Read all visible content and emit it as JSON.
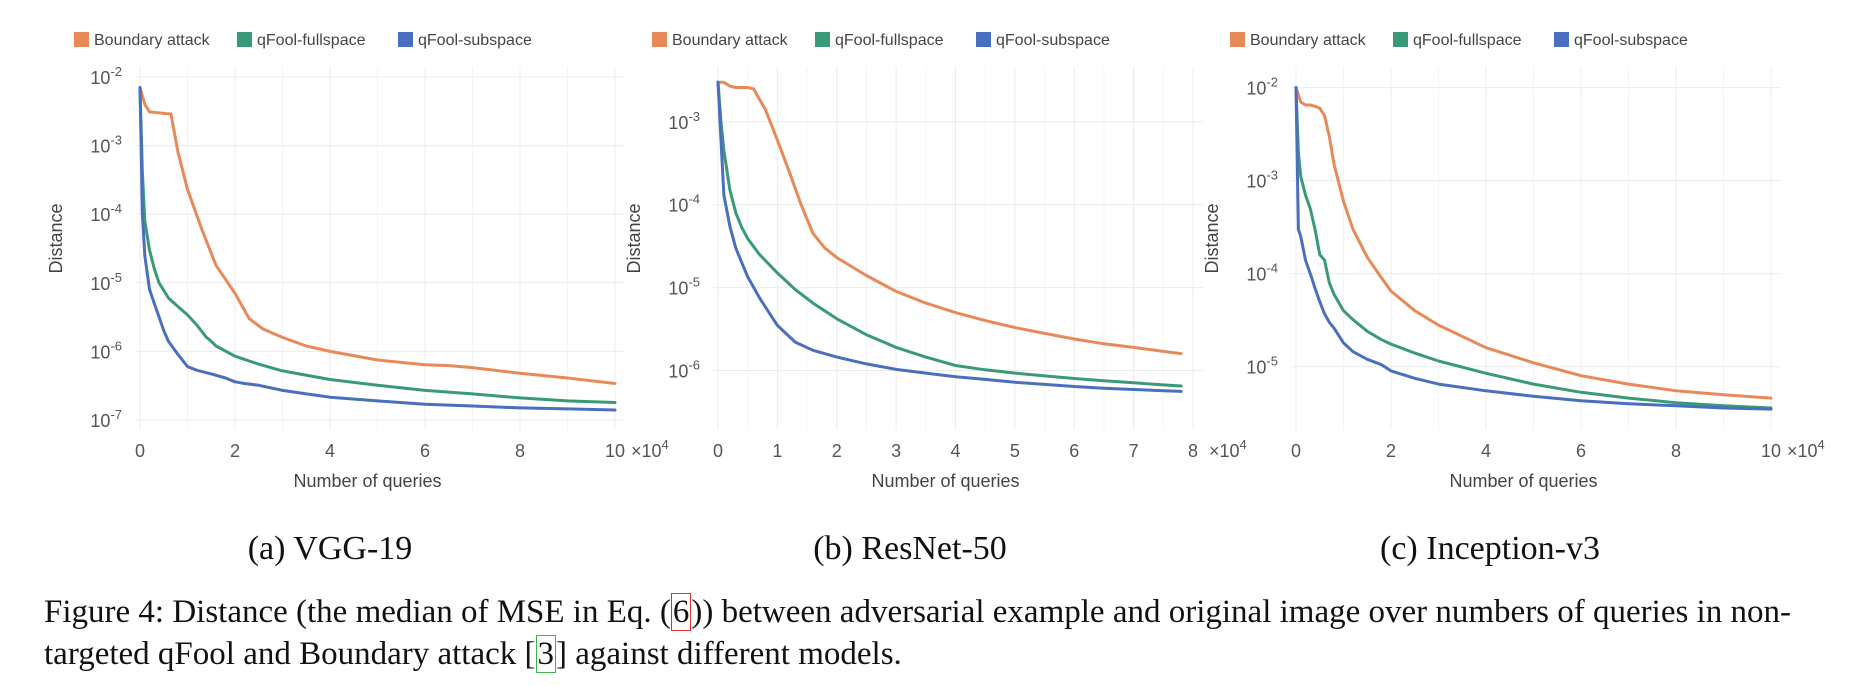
{
  "legend": [
    {
      "name": "Boundary attack",
      "color": "#e8895a"
    },
    {
      "name": "qFool-fullspace",
      "color": "#3a9a78"
    },
    {
      "name": "qFool-subspace",
      "color": "#4a6fbf"
    }
  ],
  "chart_data": [
    {
      "type": "line",
      "ylabel": "Distance",
      "xlabel": "Number of queries",
      "xlim": [
        0,
        100000
      ],
      "x_multiplier": "×10^4",
      "xticks": [
        0,
        20000,
        40000,
        60000,
        80000,
        100000
      ],
      "xtick_labels": [
        "0",
        "2",
        "4",
        "6",
        "8",
        "10"
      ],
      "yscale": "log",
      "ylim": [
        1e-07,
        0.01
      ],
      "yticks": [
        {
          "base": "10",
          "exp": "-2",
          "v": 0.01
        },
        {
          "base": "10",
          "exp": "-3",
          "v": 0.001
        },
        {
          "base": "10",
          "exp": "-4",
          "v": 0.0001
        },
        {
          "base": "10",
          "exp": "-5",
          "v": 1e-05
        },
        {
          "base": "10",
          "exp": "-6",
          "v": 1e-06
        },
        {
          "base": "10",
          "exp": "-7",
          "v": 1e-07
        }
      ],
      "series": [
        {
          "name": "Boundary attack",
          "x": [
            0,
            1000,
            2000,
            4000,
            6000,
            6500,
            8000,
            10000,
            13000,
            16000,
            20000,
            23000,
            26000,
            30000,
            35000,
            40000,
            50000,
            60000,
            65000,
            70000,
            80000,
            90000,
            100000
          ],
          "y": [
            0.007,
            0.004,
            0.0031,
            0.003,
            0.0029,
            0.0029,
            0.0008,
            0.00023,
            6e-05,
            1.8e-05,
            7e-06,
            3e-06,
            2.1e-06,
            1.6e-06,
            1.2e-06,
            1e-06,
            7.5e-07,
            6.4e-07,
            6.2e-07,
            5.8e-07,
            4.8e-07,
            4.1e-07,
            3.4e-07
          ]
        },
        {
          "name": "qFool-fullspace",
          "x": [
            0,
            500,
            1000,
            2000,
            3000,
            4000,
            6000,
            8000,
            10000,
            12000,
            14000,
            15000,
            16000,
            20000,
            25000,
            30000,
            40000,
            50000,
            60000,
            70000,
            80000,
            90000,
            100000
          ],
          "y": [
            0.007,
            0.0004,
            8e-05,
            3e-05,
            1.6e-05,
            1e-05,
            6e-06,
            4.5e-06,
            3.4e-06,
            2.4e-06,
            1.6e-06,
            1.4e-06,
            1.2e-06,
            8.5e-07,
            6.5e-07,
            5.2e-07,
            3.9e-07,
            3.2e-07,
            2.7e-07,
            2.4e-07,
            2.1e-07,
            1.9e-07,
            1.8e-07
          ]
        },
        {
          "name": "qFool-subspace",
          "x": [
            0,
            500,
            1000,
            2000,
            3000,
            4000,
            5000,
            6000,
            8000,
            10000,
            12000,
            15000,
            18000,
            20000,
            22000,
            25000,
            30000,
            35000,
            40000,
            50000,
            60000,
            70000,
            80000,
            90000,
            100000
          ],
          "y": [
            0.007,
            0.0001,
            2.5e-05,
            8e-06,
            5e-06,
            3.2e-06,
            2e-06,
            1.4e-06,
            9e-07,
            6e-07,
            5.3e-07,
            4.7e-07,
            4.1e-07,
            3.6e-07,
            3.4e-07,
            3.2e-07,
            2.7e-07,
            2.4e-07,
            2.15e-07,
            1.9e-07,
            1.7e-07,
            1.6e-07,
            1.5e-07,
            1.45e-07,
            1.4e-07
          ]
        }
      ]
    },
    {
      "type": "line",
      "ylabel": "Distance",
      "xlabel": "Number of queries",
      "xlim": [
        0,
        80000
      ],
      "x_multiplier": "×10^4",
      "xticks": [
        0,
        10000,
        20000,
        30000,
        40000,
        50000,
        60000,
        70000,
        80000
      ],
      "xtick_labels": [
        "0",
        "1",
        "2",
        "3",
        "4",
        "5",
        "6",
        "7",
        "8"
      ],
      "yscale": "log",
      "ylim": [
        5.5e-07,
        0.0032
      ],
      "yticks": [
        {
          "base": "10",
          "exp": "-3",
          "v": 0.001
        },
        {
          "base": "10",
          "exp": "-4",
          "v": 0.0001
        },
        {
          "base": "10",
          "exp": "-5",
          "v": 1e-05
        },
        {
          "base": "10",
          "exp": "-6",
          "v": 1e-06
        }
      ],
      "series": [
        {
          "name": "Boundary attack",
          "x": [
            0,
            1000,
            2000,
            3000,
            4000,
            5000,
            6000,
            8000,
            10000,
            12000,
            14000,
            16000,
            18000,
            20000,
            25000,
            30000,
            35000,
            40000,
            45000,
            50000,
            55000,
            60000,
            65000,
            70000,
            75000,
            78000
          ],
          "y": [
            0.003,
            0.003,
            0.0027,
            0.0026,
            0.0026,
            0.0026,
            0.0025,
            0.0014,
            0.0006,
            0.00025,
            0.0001,
            4.5e-05,
            3e-05,
            2.3e-05,
            1.4e-05,
            9e-06,
            6.5e-06,
            5e-06,
            4e-06,
            3.3e-06,
            2.8e-06,
            2.4e-06,
            2.1e-06,
            1.9e-06,
            1.7e-06,
            1.6e-06
          ]
        },
        {
          "name": "qFool-fullspace",
          "x": [
            0,
            500,
            1000,
            2000,
            3000,
            4000,
            5000,
            7000,
            10000,
            13000,
            16000,
            20000,
            25000,
            30000,
            35000,
            40000,
            45000,
            50000,
            55000,
            60000,
            65000,
            70000,
            75000,
            78000
          ],
          "y": [
            0.003,
            0.001,
            0.00045,
            0.00015,
            8e-05,
            5.3e-05,
            3.9e-05,
            2.5e-05,
            1.5e-05,
            9.5e-06,
            6.5e-06,
            4.2e-06,
            2.7e-06,
            1.9e-06,
            1.45e-06,
            1.15e-06,
            1.02e-06,
            9.3e-07,
            8.6e-07,
            8e-07,
            7.5e-07,
            7.1e-07,
            6.7e-07,
            6.5e-07
          ]
        },
        {
          "name": "qFool-subspace",
          "x": [
            0,
            500,
            1000,
            2000,
            3000,
            4000,
            5000,
            7000,
            10000,
            13000,
            16000,
            20000,
            25000,
            30000,
            35000,
            40000,
            45000,
            50000,
            55000,
            60000,
            65000,
            70000,
            75000,
            78000
          ],
          "y": [
            0.003,
            0.0006,
            0.00013,
            5.5e-05,
            3e-05,
            2e-05,
            1.35e-05,
            7.5e-06,
            3.5e-06,
            2.2e-06,
            1.75e-06,
            1.45e-06,
            1.2e-06,
            1.03e-06,
            9.3e-07,
            8.4e-07,
            7.8e-07,
            7.2e-07,
            6.8e-07,
            6.4e-07,
            6.1e-07,
            5.9e-07,
            5.7e-07,
            5.6e-07
          ]
        }
      ]
    },
    {
      "type": "line",
      "ylabel": "Distance",
      "xlabel": "Number of queries",
      "xlim": [
        0,
        100000
      ],
      "x_multiplier": "×10^4",
      "xticks": [
        0,
        20000,
        40000,
        60000,
        80000,
        100000
      ],
      "xtick_labels": [
        "0",
        "2",
        "4",
        "6",
        "8",
        "10"
      ],
      "yscale": "log",
      "ylim": [
        3.1e-06,
        0.0115
      ],
      "yticks": [
        {
          "base": "10",
          "exp": "-2",
          "v": 0.01
        },
        {
          "base": "10",
          "exp": "-3",
          "v": 0.001
        },
        {
          "base": "10",
          "exp": "-4",
          "v": 0.0001
        },
        {
          "base": "10",
          "exp": "-5",
          "v": 1e-05
        }
      ],
      "series": [
        {
          "name": "Boundary attack",
          "x": [
            0,
            1000,
            2000,
            3000,
            4000,
            5000,
            6000,
            7000,
            8000,
            10000,
            12000,
            15000,
            18000,
            20000,
            25000,
            30000,
            40000,
            50000,
            60000,
            70000,
            80000,
            90000,
            100000
          ],
          "y": [
            0.01,
            0.007,
            0.0065,
            0.0065,
            0.0063,
            0.006,
            0.005,
            0.003,
            0.0015,
            0.0006,
            0.0003,
            0.00015,
            9e-05,
            6.5e-05,
            4e-05,
            2.8e-05,
            1.6e-05,
            1.1e-05,
            8e-06,
            6.5e-06,
            5.5e-06,
            5e-06,
            4.6e-06
          ]
        },
        {
          "name": "qFool-fullspace",
          "x": [
            0,
            500,
            1000,
            2000,
            3000,
            4000,
            5000,
            6000,
            7000,
            8000,
            10000,
            12000,
            15000,
            18000,
            20000,
            25000,
            30000,
            40000,
            50000,
            60000,
            70000,
            80000,
            90000,
            100000
          ],
          "y": [
            0.01,
            0.002,
            0.0011,
            0.0007,
            0.0005,
            0.0003,
            0.00016,
            0.00014,
            8e-05,
            6e-05,
            4e-05,
            3.2e-05,
            2.4e-05,
            1.95e-05,
            1.75e-05,
            1.4e-05,
            1.15e-05,
            8.5e-06,
            6.5e-06,
            5.3e-06,
            4.6e-06,
            4.1e-06,
            3.8e-06,
            3.6e-06
          ]
        },
        {
          "name": "qFool-subspace",
          "x": [
            0,
            500,
            1000,
            2000,
            3000,
            4000,
            5000,
            6000,
            7000,
            8000,
            10000,
            12000,
            15000,
            18000,
            20000,
            25000,
            30000,
            40000,
            50000,
            60000,
            70000,
            80000,
            90000,
            100000
          ],
          "y": [
            0.01,
            0.0003,
            0.00025,
            0.00014,
            0.0001,
            7e-05,
            5e-05,
            3.7e-05,
            3e-05,
            2.6e-05,
            1.8e-05,
            1.45e-05,
            1.2e-05,
            1.05e-05,
            9e-06,
            7.5e-06,
            6.5e-06,
            5.5e-06,
            4.8e-06,
            4.3e-06,
            4e-06,
            3.8e-06,
            3.6e-06,
            3.5e-06
          ]
        }
      ]
    }
  ],
  "subcaptions": [
    "(a) VGG-19",
    "(b) ResNet-50",
    "(c) Inception-v3"
  ],
  "caption": {
    "part1": "Figure 4: Distance (the median of MSE in Eq. (",
    "eq_ref": "6",
    "part2": ")) between adversarial example and original image over numbers of queries in non-targeted qFool and Boundary attack [",
    "cite_ref": "3",
    "part3": "] against different models."
  }
}
